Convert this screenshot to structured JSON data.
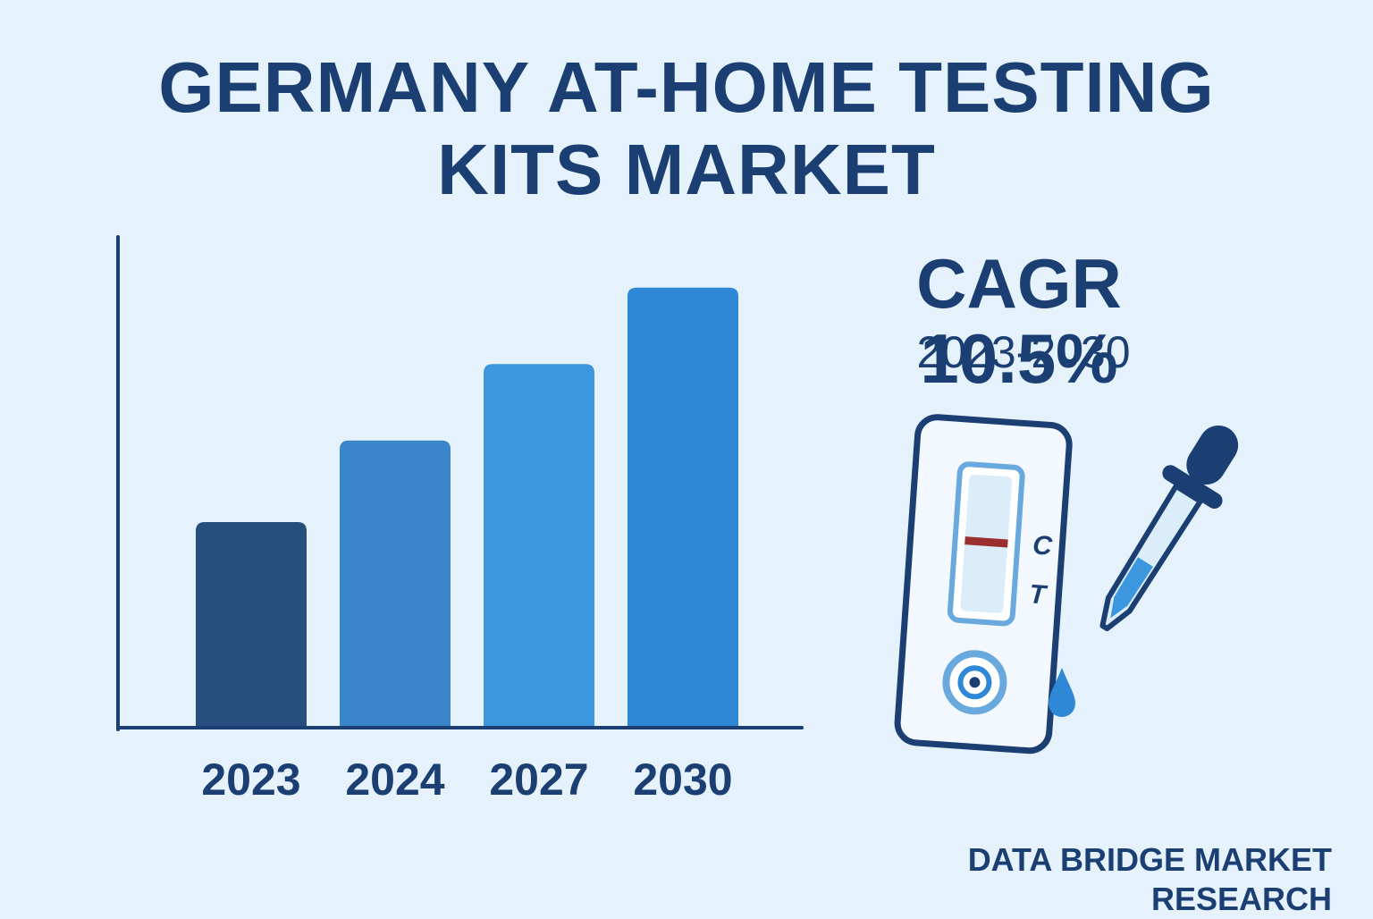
{
  "header": {
    "title_line1": "GERMANY AT-HOME TESTING",
    "title_line2": "KITS MARKET"
  },
  "highlight": {
    "cagr": "CAGR 10.5%",
    "period": "2023-2030"
  },
  "kit": {
    "control_label": "C",
    "test_label": "T"
  },
  "footer": {
    "source": "DATA BRIDGE MARKET RESEARCH"
  },
  "colors": {
    "background": "#e6f2fb",
    "text": "#1b3f73",
    "bars": [
      "#264f7e",
      "#3a86c9",
      "#3d97de",
      "#2e88d6"
    ],
    "accent_red": "#9b2e2e"
  },
  "chart_data": {
    "type": "bar",
    "categories": [
      "2023",
      "2024",
      "2027",
      "2030"
    ],
    "values": [
      40,
      56,
      71,
      86
    ],
    "ylim": [
      0,
      100
    ],
    "grid": false,
    "legend": "none",
    "xlabel": "",
    "ylabel": ""
  }
}
